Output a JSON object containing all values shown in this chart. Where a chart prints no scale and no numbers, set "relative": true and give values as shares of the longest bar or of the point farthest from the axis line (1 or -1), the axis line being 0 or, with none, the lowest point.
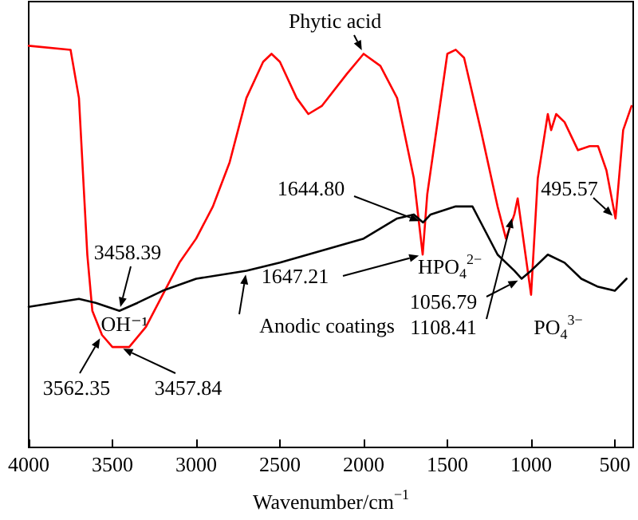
{
  "chart_data": {
    "type": "line",
    "relative": true,
    "xlabel": "Wavenumber/cm$^{−1}$",
    "xlim": [
      4000,
      390
    ],
    "xticks": [
      4000,
      3500,
      3000,
      2500,
      2000,
      1500,
      1000,
      500
    ],
    "marker": "none",
    "line_style": "solid",
    "series": [
      {
        "name": "Phytic acid",
        "color": "#ff0000",
        "x": [
          4000,
          3750,
          3700,
          3650,
          3620,
          3562.35,
          3500,
          3457.84,
          3400,
          3300,
          3200,
          3100,
          3000,
          2900,
          2800,
          2700,
          2600,
          2550,
          2500,
          2400,
          2330,
          2250,
          2100,
          2000,
          1900,
          1800,
          1700,
          1647.21,
          1620,
          1500,
          1450,
          1400,
          1300,
          1200,
          1150,
          1100,
          1080,
          1060,
          1000,
          960,
          900,
          880,
          850,
          800,
          720,
          650,
          600,
          550,
          495.57,
          450,
          400
        ],
        "values": [
          1.0,
          0.99,
          0.87,
          0.48,
          0.34,
          0.28,
          0.25,
          0.25,
          0.25,
          0.3,
          0.38,
          0.46,
          0.52,
          0.6,
          0.71,
          0.87,
          0.96,
          0.98,
          0.96,
          0.87,
          0.83,
          0.85,
          0.93,
          0.98,
          0.95,
          0.87,
          0.67,
          0.48,
          0.63,
          0.98,
          0.99,
          0.97,
          0.79,
          0.6,
          0.52,
          0.58,
          0.62,
          0.56,
          0.38,
          0.67,
          0.83,
          0.79,
          0.83,
          0.81,
          0.74,
          0.75,
          0.75,
          0.69,
          0.57,
          0.79,
          0.85
        ]
      },
      {
        "name": "Anodic coatings",
        "color": "#000000",
        "x": [
          4000,
          3700,
          3600,
          3458.39,
          3350,
          3200,
          3000,
          2700,
          2500,
          2000,
          1800,
          1700,
          1644.8,
          1600,
          1450,
          1350,
          1300,
          1200,
          1100,
          1056.79,
          1000,
          900,
          800,
          700,
          600,
          500,
          430
        ],
        "values": [
          0.35,
          0.37,
          0.36,
          0.34,
          0.36,
          0.39,
          0.42,
          0.44,
          0.46,
          0.52,
          0.57,
          0.58,
          0.56,
          0.58,
          0.6,
          0.6,
          0.56,
          0.48,
          0.44,
          0.42,
          0.44,
          0.48,
          0.46,
          0.42,
          0.4,
          0.39,
          0.42
        ]
      }
    ],
    "annotations": [
      {
        "text": "3458.39",
        "x": 3458.39,
        "y": 0.34
      },
      "OH⁻¹",
      {
        "text": "3562.35",
        "x": 3562.35,
        "y": 0.28
      },
      {
        "text": "3457.84",
        "x": 3457.84,
        "y": 0.25
      },
      {
        "text": "1644.80",
        "x": 1644.8,
        "y": 0.56
      },
      {
        "text": "1647.21",
        "x": 1647.21,
        "y": 0.48
      },
      "HPO$_{4}$$^{2−}$",
      {
        "text": "1056.79",
        "x": 1056.79,
        "y": 0.42
      },
      {
        "text": "1108.41",
        "x": 1108.41,
        "y": 0.58
      },
      "PO$_{4}$$^{3−}$",
      {
        "text": "495.57",
        "x": 495.57,
        "y": 0.57
      }
    ]
  }
}
